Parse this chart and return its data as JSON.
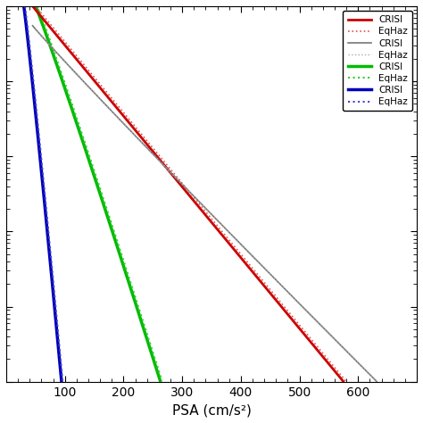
{
  "title": "",
  "xlabel": "PSA (cm/s²)",
  "ylabel": "",
  "xlim": [
    0,
    700
  ],
  "series": [
    {
      "label": "CRISI",
      "color": "#cc0000",
      "linestyle": "solid",
      "linewidth": 2.0,
      "curve_type": "red_solid"
    },
    {
      "label": "EqHaz",
      "color": "#dd5555",
      "linestyle": "dotted",
      "linewidth": 1.2,
      "curve_type": "red_dashed"
    },
    {
      "label": "CRISI",
      "color": "#777777",
      "linestyle": "solid",
      "linewidth": 1.2,
      "curve_type": "gray_solid"
    },
    {
      "label": "EqHaz",
      "color": "#aaaaaa",
      "linestyle": "dotted",
      "linewidth": 1.0,
      "curve_type": "gray_dashed"
    },
    {
      "label": "CRISI",
      "color": "#00bb00",
      "linestyle": "solid",
      "linewidth": 2.5,
      "curve_type": "green_solid"
    },
    {
      "label": "EqHaz",
      "color": "#33cc33",
      "linestyle": "dotted",
      "linewidth": 1.5,
      "curve_type": "green_dashed"
    },
    {
      "label": "CRISI",
      "color": "#0000bb",
      "linestyle": "solid",
      "linewidth": 2.5,
      "curve_type": "blue_solid"
    },
    {
      "label": "EqHaz",
      "color": "#4444cc",
      "linestyle": "dotted",
      "linewidth": 1.5,
      "curve_type": "blue_dashed"
    }
  ],
  "legend_fontsize": 7.5,
  "tick_labelsize": 9
}
